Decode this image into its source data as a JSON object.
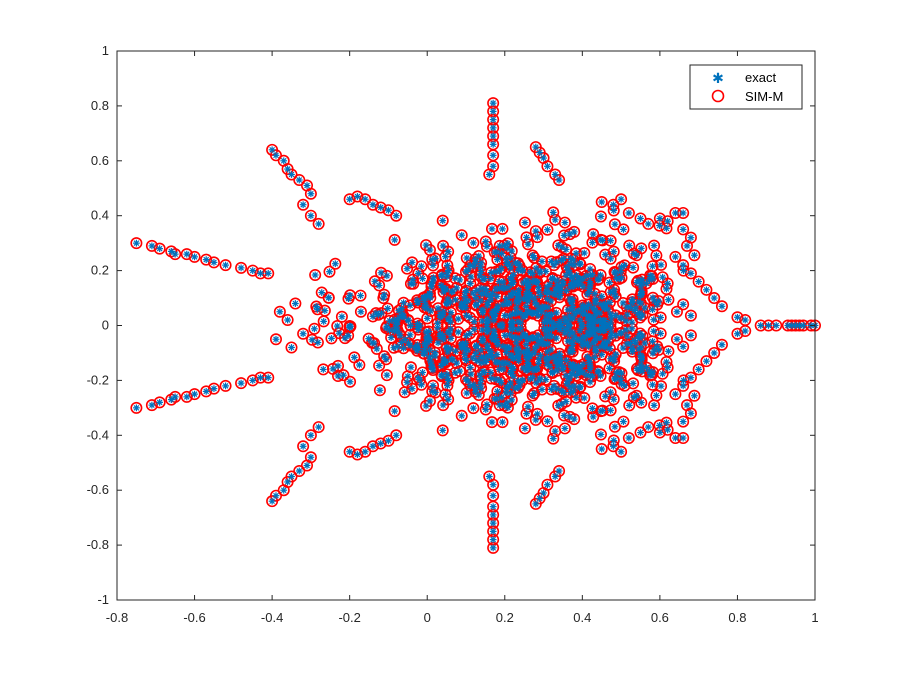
{
  "chart_data": {
    "type": "scatter",
    "title": "",
    "xlabel": "",
    "ylabel": "",
    "xlim": [
      -0.8,
      1
    ],
    "ylim": [
      -1,
      1
    ],
    "xticks": [
      "-0.8",
      "-0.6",
      "-0.4",
      "-0.2",
      "0",
      "0.2",
      "0.4",
      "0.6",
      "0.8",
      "1"
    ],
    "yticks": [
      "-1",
      "-0.8",
      "-0.6",
      "-0.4",
      "-0.2",
      "0",
      "0.2",
      "0.4",
      "0.6",
      "0.8",
      "1"
    ],
    "grid": false,
    "legend_position": "top-right",
    "series": [
      {
        "name": "exact",
        "marker": "asterisk",
        "color": "#0072BD"
      },
      {
        "name": "SIM-M",
        "marker": "circle",
        "color": "#FF0000"
      }
    ],
    "points": [
      [
        -0.75,
        0.3
      ],
      [
        -0.71,
        0.29
      ],
      [
        -0.69,
        0.28
      ],
      [
        -0.66,
        0.27
      ],
      [
        -0.65,
        0.26
      ],
      [
        -0.62,
        0.26
      ],
      [
        -0.6,
        0.25
      ],
      [
        -0.57,
        0.24
      ],
      [
        -0.55,
        0.23
      ],
      [
        -0.52,
        0.22
      ],
      [
        -0.48,
        0.21
      ],
      [
        -0.45,
        0.2
      ],
      [
        -0.43,
        0.19
      ],
      [
        -0.41,
        0.19
      ],
      [
        -0.75,
        -0.3
      ],
      [
        -0.71,
        -0.29
      ],
      [
        -0.69,
        -0.28
      ],
      [
        -0.66,
        -0.27
      ],
      [
        -0.65,
        -0.26
      ],
      [
        -0.62,
        -0.26
      ],
      [
        -0.6,
        -0.25
      ],
      [
        -0.57,
        -0.24
      ],
      [
        -0.55,
        -0.23
      ],
      [
        -0.52,
        -0.22
      ],
      [
        -0.48,
        -0.21
      ],
      [
        -0.45,
        -0.2
      ],
      [
        -0.43,
        -0.19
      ],
      [
        -0.41,
        -0.19
      ],
      [
        -0.4,
        0.64
      ],
      [
        -0.39,
        0.62
      ],
      [
        -0.37,
        0.6
      ],
      [
        -0.36,
        0.57
      ],
      [
        -0.35,
        0.55
      ],
      [
        -0.33,
        0.53
      ],
      [
        -0.31,
        0.51
      ],
      [
        -0.3,
        0.48
      ],
      [
        -0.32,
        0.44
      ],
      [
        -0.3,
        0.4
      ],
      [
        -0.28,
        0.37
      ],
      [
        -0.4,
        -0.64
      ],
      [
        -0.39,
        -0.62
      ],
      [
        -0.37,
        -0.6
      ],
      [
        -0.36,
        -0.57
      ],
      [
        -0.35,
        -0.55
      ],
      [
        -0.33,
        -0.53
      ],
      [
        -0.31,
        -0.51
      ],
      [
        -0.3,
        -0.48
      ],
      [
        -0.32,
        -0.44
      ],
      [
        -0.3,
        -0.4
      ],
      [
        -0.28,
        -0.37
      ],
      [
        0.17,
        0.81
      ],
      [
        0.17,
        0.78
      ],
      [
        0.17,
        0.75
      ],
      [
        0.17,
        0.72
      ],
      [
        0.17,
        0.69
      ],
      [
        0.17,
        0.66
      ],
      [
        0.17,
        0.62
      ],
      [
        0.17,
        0.58
      ],
      [
        0.16,
        0.55
      ],
      [
        0.17,
        -0.81
      ],
      [
        0.17,
        -0.78
      ],
      [
        0.17,
        -0.75
      ],
      [
        0.17,
        -0.72
      ],
      [
        0.17,
        -0.69
      ],
      [
        0.17,
        -0.66
      ],
      [
        0.17,
        -0.62
      ],
      [
        0.17,
        -0.58
      ],
      [
        0.16,
        -0.55
      ],
      [
        0.28,
        0.65
      ],
      [
        0.29,
        0.63
      ],
      [
        0.3,
        0.61
      ],
      [
        0.31,
        0.58
      ],
      [
        0.33,
        0.55
      ],
      [
        0.34,
        0.53
      ],
      [
        0.28,
        -0.65
      ],
      [
        0.29,
        -0.63
      ],
      [
        0.3,
        -0.61
      ],
      [
        0.31,
        -0.58
      ],
      [
        0.33,
        -0.55
      ],
      [
        0.34,
        -0.53
      ],
      [
        0.86,
        0.0
      ],
      [
        0.88,
        0.0
      ],
      [
        0.9,
        0.0
      ],
      [
        0.93,
        0.0
      ],
      [
        0.94,
        0.0
      ],
      [
        0.95,
        0.0
      ],
      [
        0.96,
        0.0
      ],
      [
        0.97,
        0.0
      ],
      [
        0.99,
        0.0
      ],
      [
        1.0,
        0.0
      ],
      [
        0.82,
        0.02
      ],
      [
        0.82,
        -0.02
      ],
      [
        0.8,
        0.03
      ],
      [
        0.8,
        -0.03
      ],
      [
        0.45,
        0.45
      ],
      [
        0.48,
        0.44
      ],
      [
        0.5,
        0.46
      ],
      [
        0.52,
        0.41
      ],
      [
        0.55,
        0.39
      ],
      [
        0.57,
        0.37
      ],
      [
        0.6,
        0.39
      ],
      [
        0.62,
        0.38
      ],
      [
        0.64,
        0.41
      ],
      [
        0.66,
        0.41
      ],
      [
        0.45,
        -0.45
      ],
      [
        0.48,
        -0.44
      ],
      [
        0.5,
        -0.46
      ],
      [
        0.52,
        -0.41
      ],
      [
        0.55,
        -0.39
      ],
      [
        0.57,
        -0.37
      ],
      [
        0.6,
        -0.39
      ],
      [
        0.62,
        -0.38
      ],
      [
        0.64,
        -0.41
      ],
      [
        0.66,
        -0.41
      ],
      [
        0.64,
        0.25
      ],
      [
        0.66,
        0.22
      ],
      [
        0.68,
        0.19
      ],
      [
        0.7,
        0.16
      ],
      [
        0.72,
        0.13
      ],
      [
        0.74,
        0.1
      ],
      [
        0.76,
        0.07
      ],
      [
        0.64,
        -0.25
      ],
      [
        0.66,
        -0.22
      ],
      [
        0.68,
        -0.19
      ],
      [
        0.7,
        -0.16
      ],
      [
        0.72,
        -0.13
      ],
      [
        0.74,
        -0.1
      ],
      [
        0.76,
        -0.07
      ],
      [
        0.67,
        0.29
      ],
      [
        0.68,
        0.32
      ],
      [
        0.66,
        0.35
      ],
      [
        0.67,
        -0.29
      ],
      [
        0.68,
        -0.32
      ],
      [
        0.66,
        -0.35
      ],
      [
        -0.2,
        0.46
      ],
      [
        -0.18,
        0.47
      ],
      [
        -0.16,
        0.46
      ],
      [
        -0.14,
        0.44
      ],
      [
        -0.12,
        0.43
      ],
      [
        -0.1,
        0.42
      ],
      [
        -0.08,
        0.4
      ],
      [
        -0.2,
        -0.46
      ],
      [
        -0.18,
        -0.47
      ],
      [
        -0.16,
        -0.46
      ],
      [
        -0.14,
        -0.44
      ],
      [
        -0.12,
        -0.43
      ],
      [
        -0.1,
        -0.42
      ],
      [
        -0.08,
        -0.4
      ],
      [
        -0.38,
        0.05
      ],
      [
        -0.36,
        0.02
      ],
      [
        -0.34,
        0.08
      ],
      [
        -0.32,
        -0.03
      ],
      [
        -0.39,
        -0.05
      ],
      [
        -0.35,
        -0.08
      ]
    ]
  },
  "legend": {
    "entries": [
      {
        "label": "exact",
        "symbol": "✱",
        "color": "#0072BD"
      },
      {
        "label": "SIM-M",
        "symbol": "○",
        "color": "#FF0000"
      }
    ]
  }
}
